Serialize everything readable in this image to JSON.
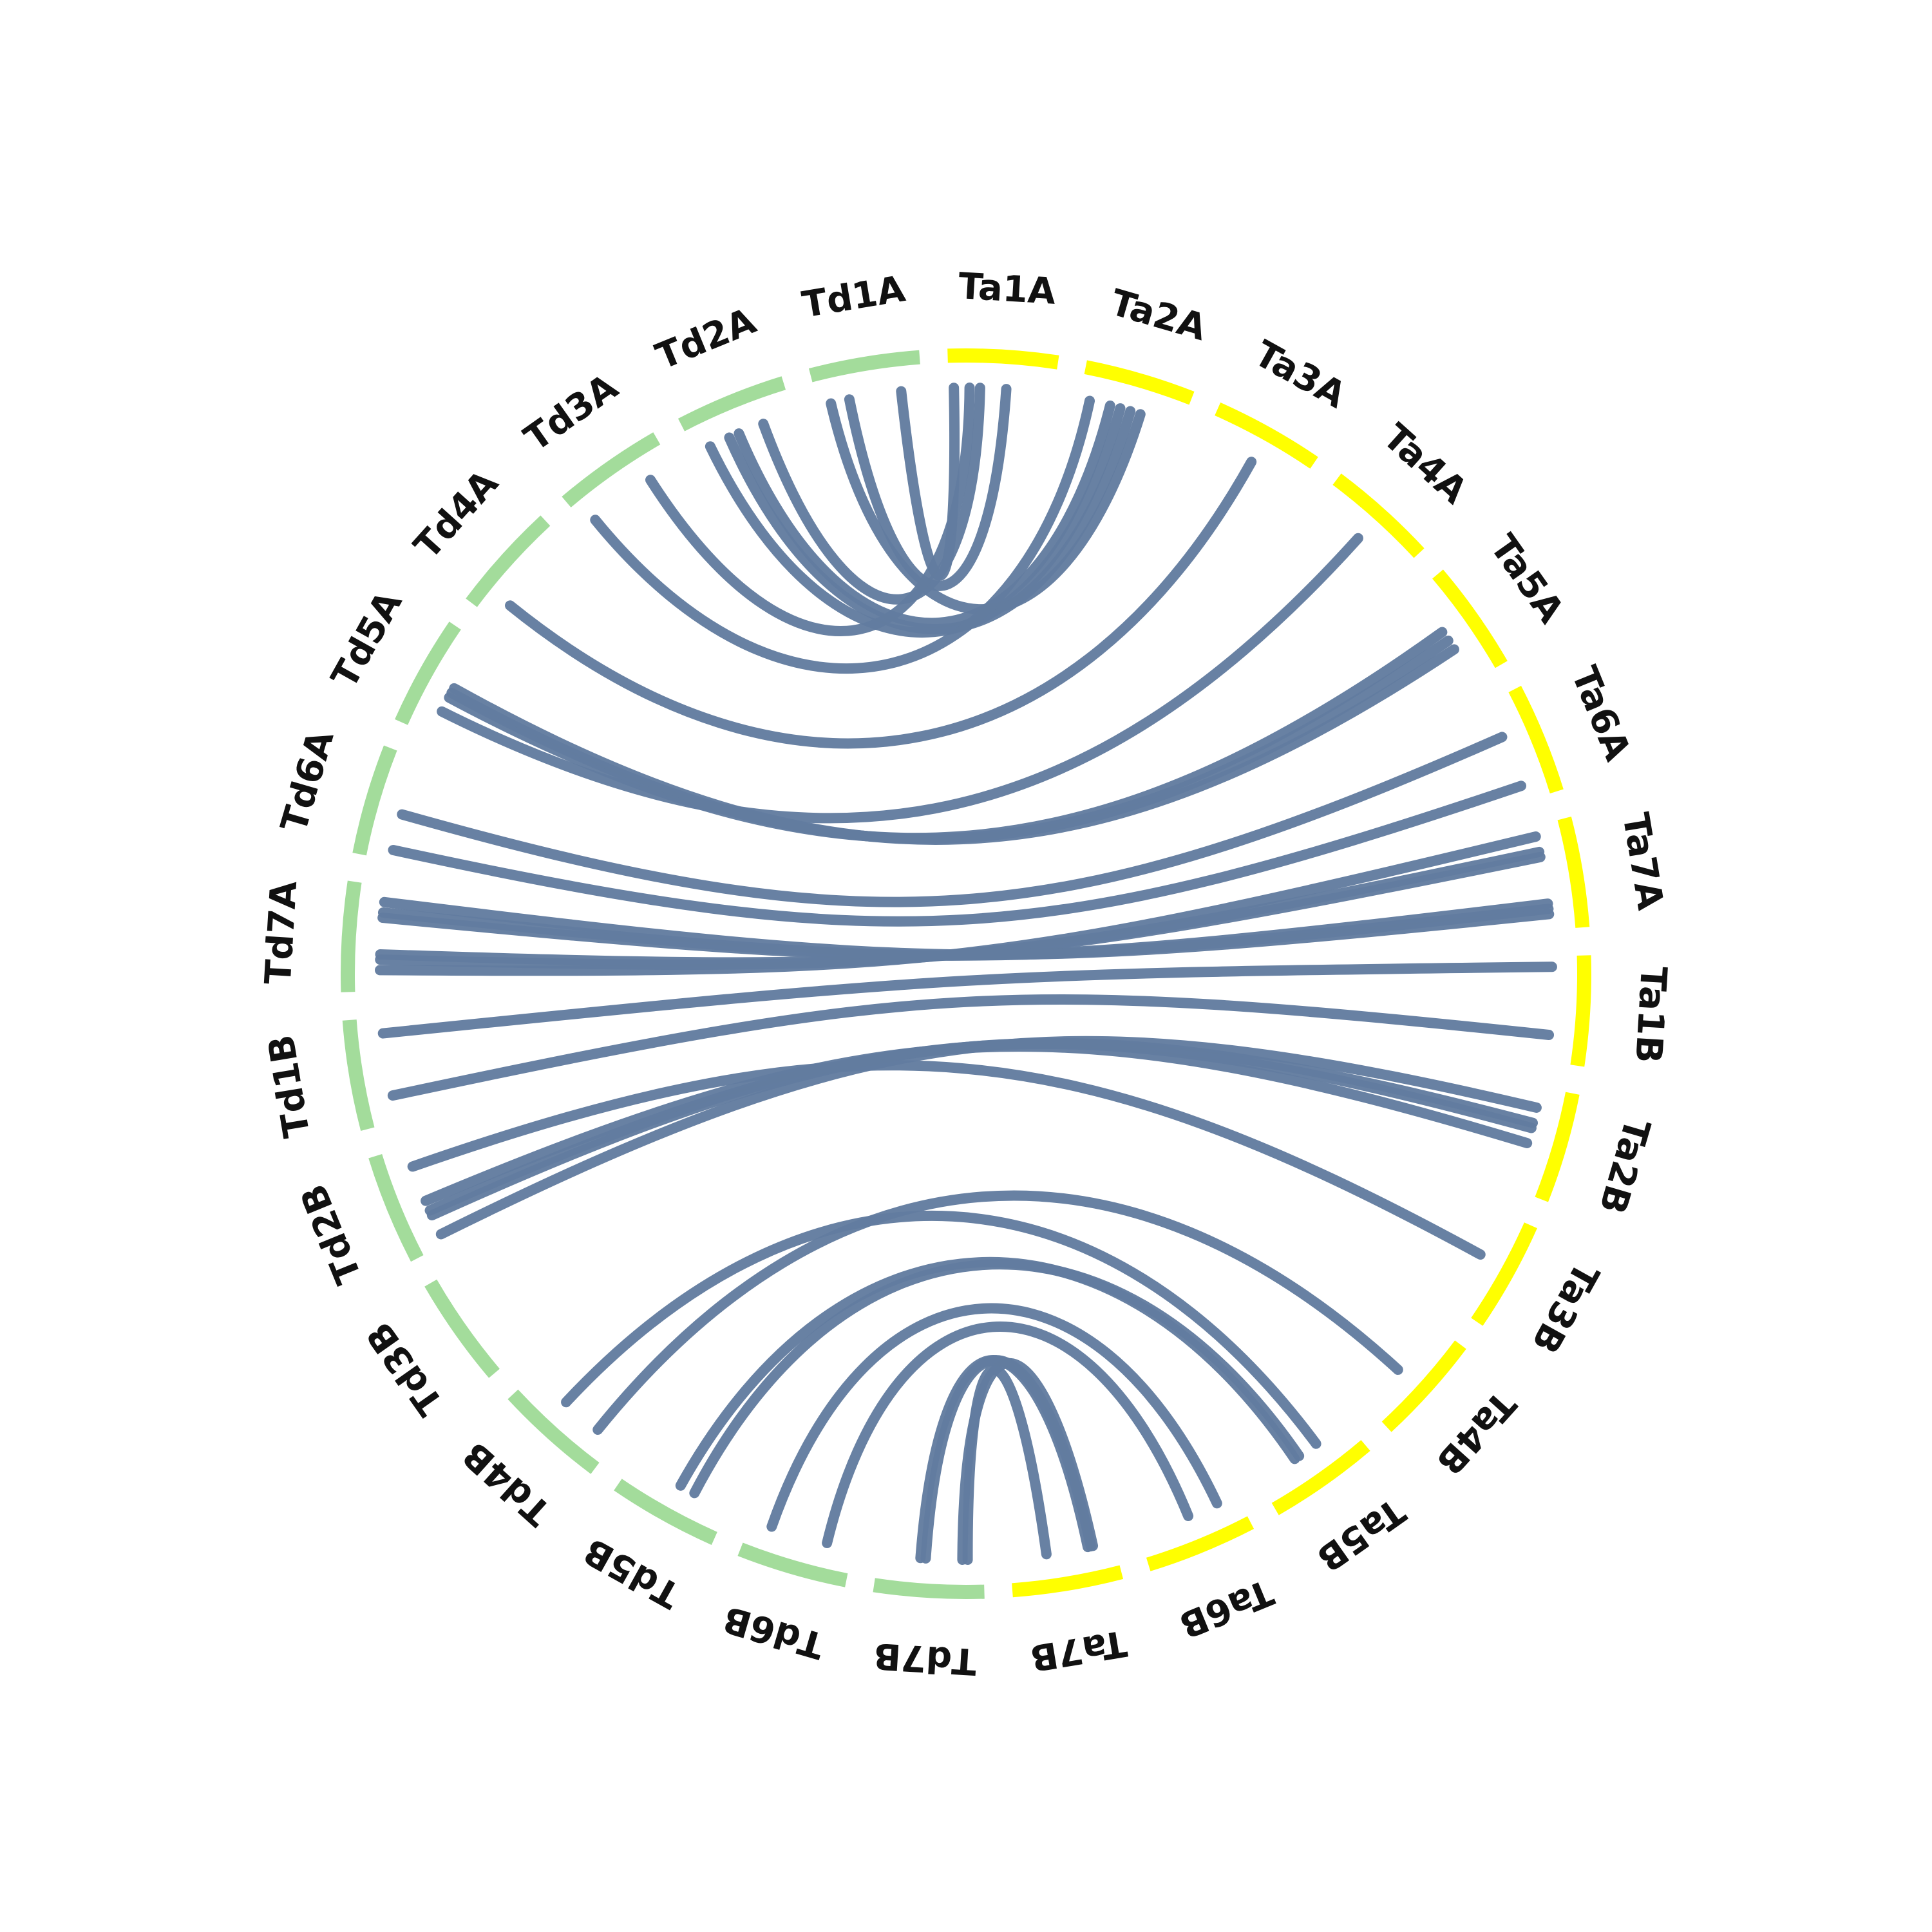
{
  "chart_data": {
    "type": "chord",
    "colors": {
      "Td": "#a3dc9b",
      "Ta": "#ffff00",
      "link": "#627c9f"
    },
    "chromosomes": [
      {
        "id": "Ta1A",
        "genome": "Ta"
      },
      {
        "id": "Ta2A",
        "genome": "Ta"
      },
      {
        "id": "Ta3A",
        "genome": "Ta"
      },
      {
        "id": "Ta4A",
        "genome": "Ta"
      },
      {
        "id": "Ta5A",
        "genome": "Ta"
      },
      {
        "id": "Ta6A",
        "genome": "Ta"
      },
      {
        "id": "Ta7A",
        "genome": "Ta"
      },
      {
        "id": "Ta1B",
        "genome": "Ta"
      },
      {
        "id": "Ta2B",
        "genome": "Ta"
      },
      {
        "id": "Ta3B",
        "genome": "Ta"
      },
      {
        "id": "Ta4B",
        "genome": "Ta"
      },
      {
        "id": "Ta5B",
        "genome": "Ta"
      },
      {
        "id": "Ta6B",
        "genome": "Ta"
      },
      {
        "id": "Ta7B",
        "genome": "Ta"
      },
      {
        "id": "Td7B",
        "genome": "Td"
      },
      {
        "id": "Td6B",
        "genome": "Td"
      },
      {
        "id": "Td5B",
        "genome": "Td"
      },
      {
        "id": "Td4B",
        "genome": "Td"
      },
      {
        "id": "Td3B",
        "genome": "Td"
      },
      {
        "id": "Td2B",
        "genome": "Td"
      },
      {
        "id": "Td1B",
        "genome": "Td"
      },
      {
        "id": "Td7A",
        "genome": "Td"
      },
      {
        "id": "Td6A",
        "genome": "Td"
      },
      {
        "id": "Td5A",
        "genome": "Td"
      },
      {
        "id": "Td4A",
        "genome": "Td"
      },
      {
        "id": "Td3A",
        "genome": "Td"
      },
      {
        "id": "Td2A",
        "genome": "Td"
      },
      {
        "id": "Td1A",
        "genome": "Td"
      }
    ],
    "links": [
      {
        "source": "Td1A",
        "source_pos": 0.3,
        "target": "Ta1A",
        "target_pos": 0.55
      },
      {
        "source": "Td1A",
        "source_pos": 0.8,
        "target": "Ta1A",
        "target_pos": 0.05
      },
      {
        "source": "Td1A",
        "source_pos": 0.12,
        "target": "Ta2A",
        "target_pos": 0.6
      },
      {
        "source": "Td2A",
        "source_pos": 0.15,
        "target": "Ta2A",
        "target_pos": 0.4
      },
      {
        "source": "Td2A",
        "source_pos": 0.35,
        "target": "Ta2A",
        "target_pos": 0.5
      },
      {
        "source": "Td2A",
        "source_pos": 0.45,
        "target": "Ta2A",
        "target_pos": 0.3
      },
      {
        "source": "Td2A",
        "source_pos": 0.7,
        "target": "Ta1A",
        "target_pos": 0.3
      },
      {
        "source": "Td3A",
        "source_pos": 0.1,
        "target": "Ta2A",
        "target_pos": 0.1
      },
      {
        "source": "Td3A",
        "source_pos": 0.75,
        "target": "Ta1A",
        "target_pos": 0.2
      },
      {
        "source": "Td4A",
        "source_pos": 0.2,
        "target": "Ta3A",
        "target_pos": 0.5
      },
      {
        "source": "Td5A",
        "source_pos": 0.25,
        "target": "Ta4A",
        "target_pos": 0.5
      },
      {
        "source": "Td5A",
        "source_pos": 0.4,
        "target": "Ta5A",
        "target_pos": 0.45
      },
      {
        "source": "Td5A",
        "source_pos": 0.45,
        "target": "Ta5A",
        "target_pos": 0.55
      },
      {
        "source": "Td5A",
        "source_pos": 0.5,
        "target": "Ta5A",
        "target_pos": 0.65
      },
      {
        "source": "Td6A",
        "source_pos": 0.45,
        "target": "Ta6A",
        "target_pos": 0.35
      },
      {
        "source": "Td6A",
        "source_pos": 0.1,
        "target": "Ta6A",
        "target_pos": 0.85
      },
      {
        "source": "Td7A",
        "source_pos": 0.2,
        "target": "Ta7A",
        "target_pos": 0.1
      },
      {
        "source": "Td7A",
        "source_pos": 0.3,
        "target": "Ta7A",
        "target_pos": 0.25
      },
      {
        "source": "Td7A",
        "source_pos": 0.35,
        "target": "Ta7A",
        "target_pos": 0.3
      },
      {
        "source": "Td7A",
        "source_pos": 0.7,
        "target": "Ta7A",
        "target_pos": 0.75
      },
      {
        "source": "Td7A",
        "source_pos": 0.75,
        "target": "Ta7A",
        "target_pos": 0.8
      },
      {
        "source": "Td7A",
        "source_pos": 0.85,
        "target": "Ta7A",
        "target_pos": 0.85
      },
      {
        "source": "Td1B",
        "source_pos": 0.25,
        "target": "Ta1B",
        "target_pos": 0.75
      },
      {
        "source": "Td1B",
        "source_pos": 0.85,
        "target": "Ta1B",
        "target_pos": 0.1
      },
      {
        "source": "Td2B",
        "source_pos": 0.1,
        "target": "Ta2B",
        "target_pos": 0.2
      },
      {
        "source": "Td2B",
        "source_pos": 0.3,
        "target": "Ta2B",
        "target_pos": 0.35
      },
      {
        "source": "Td2B",
        "source_pos": 0.35,
        "target": "Ta2B",
        "target_pos": 0.4
      },
      {
        "source": "Td2B",
        "source_pos": 0.45,
        "target": "Ta2B",
        "target_pos": 0.55
      },
      {
        "source": "Td2B",
        "source_pos": 0.8,
        "target": "Ta3B",
        "target_pos": 0.45
      },
      {
        "source": "Td4B",
        "source_pos": 0.2,
        "target": "Ta4B",
        "target_pos": 0.55
      },
      {
        "source": "Td4B",
        "source_pos": 0.6,
        "target": "Ta5B",
        "target_pos": 0.35
      },
      {
        "source": "Td5B",
        "source_pos": 0.35,
        "target": "Ta5B",
        "target_pos": 0.55
      },
      {
        "source": "Td5B",
        "source_pos": 0.5,
        "target": "Ta5B",
        "target_pos": 0.6
      },
      {
        "source": "Td6B",
        "source_pos": 0.25,
        "target": "Ta6B",
        "target_pos": 0.5
      },
      {
        "source": "Td6B",
        "source_pos": 0.8,
        "target": "Ta6B",
        "target_pos": 0.2
      },
      {
        "source": "Td7B",
        "source_pos": 0.15,
        "target": "Ta7B",
        "target_pos": 0.65
      },
      {
        "source": "Td7B",
        "source_pos": 0.2,
        "target": "Ta7B",
        "target_pos": 0.2
      },
      {
        "source": "Td7B",
        "source_pos": 0.55,
        "target": "Ta7B",
        "target_pos": 0.22
      },
      {
        "source": "Td7B",
        "source_pos": 0.6,
        "target": "Ta7B",
        "target_pos": 0.25
      }
    ]
  }
}
